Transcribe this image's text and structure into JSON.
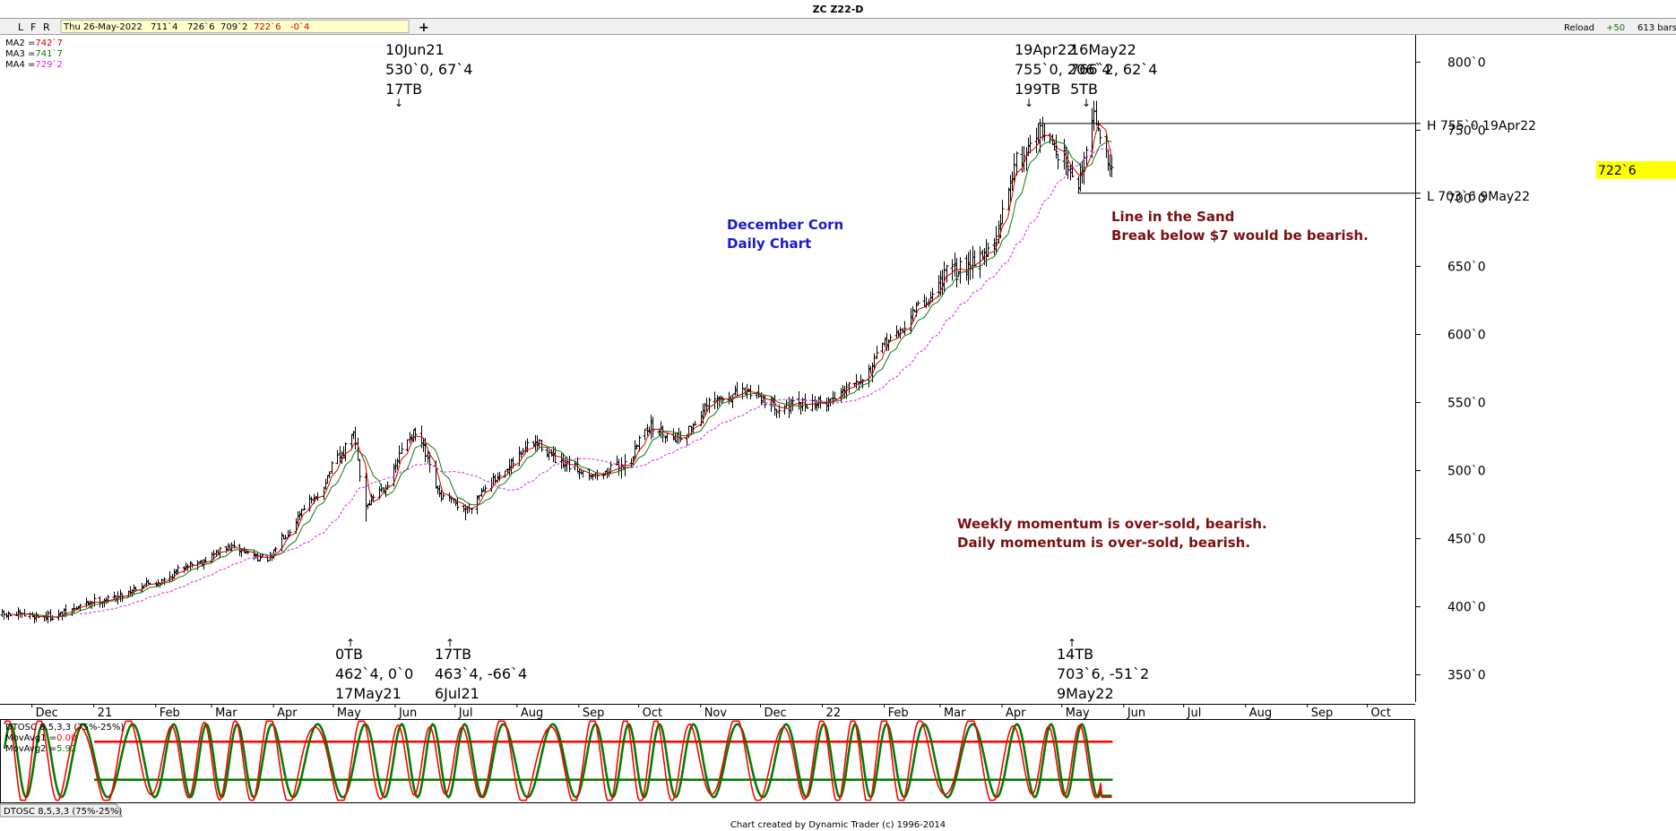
{
  "window": {
    "title": "ZC Z22-D",
    "toolbar_letters": [
      "L",
      "F",
      "R"
    ],
    "info_bar": {
      "date": "Thu 26-May-2022",
      "open": "711`4",
      "high": "726`6",
      "low": "709`2",
      "close": "722`6",
      "change": "-0`4"
    },
    "add_label": "+",
    "reload_label": "Reload",
    "reload_step": "+50",
    "bar_count": "613 bars"
  },
  "legend": {
    "ma_items": [
      {
        "name": "MA2",
        "value": "742`7",
        "color": "#d40000"
      },
      {
        "name": "MA3",
        "value": "741`7",
        "color": "#0a7a0a"
      },
      {
        "name": "MA4",
        "value": "729`2",
        "color": "#e020e0"
      }
    ]
  },
  "annotations": {
    "chart_label": [
      "December Corn",
      "Daily Chart"
    ],
    "line_in_sand": [
      "Line in the Sand",
      "Break below $7 would be bearish."
    ],
    "momentum_note": [
      "Weekly momentum is over-sold, bearish.",
      "Daily momentum is over-sold, bearish."
    ],
    "high_line_label": "H 755`0 19Apr22",
    "low_line_label": "L 703`6 9May22",
    "pivot_jun21": [
      "10Jun21",
      "530`0, 67`4",
      "17TB"
    ],
    "pivot_apr22": [
      "19Apr22",
      "755`0, 206`4",
      "199TB"
    ],
    "pivot_may22_high": [
      "16May22",
      "",
      "5TB"
    ],
    "pivot_may22_high_overlap": "766`2, 62`4",
    "pivot_may21": [
      "0TB",
      "462`4, 0`0",
      "17May21"
    ],
    "pivot_jul21": [
      "17TB",
      "463`4, -66`4",
      "6Jul21"
    ],
    "pivot_may22_low": [
      "14TB",
      "703`6, -51`2",
      "9May22"
    ],
    "arrow_up": "↑",
    "arrow_down": "↓"
  },
  "oscillator": {
    "title": "DTOSC 8,5,3,3 (75%-25%)",
    "movavg1_label": "MovAvg1 =",
    "movavg1_value": "0.00",
    "movavg2_label": "MovAvg2 =",
    "movavg2_value": "5.92",
    "tab_label": "DTOSC 8,5,3,3 (75%-25%)",
    "upper_level": 75,
    "lower_level": 25,
    "colors": {
      "fast": "#ff0000",
      "slow": "#007a00"
    }
  },
  "footer": {
    "credit": "Chart created by Dynamic Trader  (c) 1996-2014"
  },
  "colors": {
    "annotation_blue": "#1a1acc",
    "annotation_red": "#7a1010",
    "price_highlight": "#ffff00"
  },
  "chart_data": {
    "type": "bar",
    "symbol": "ZC Z22-D",
    "ylim": [
      330,
      820
    ],
    "y_ticks": [
      {
        "value": 350,
        "label": "350`0"
      },
      {
        "value": 400,
        "label": "400`0"
      },
      {
        "value": 450,
        "label": "450`0"
      },
      {
        "value": 500,
        "label": "500`0"
      },
      {
        "value": 550,
        "label": "550`0"
      },
      {
        "value": 600,
        "label": "600`0"
      },
      {
        "value": 650,
        "label": "650`0"
      },
      {
        "value": 700,
        "label": "700`0"
      },
      {
        "value": 750,
        "label": "750`0"
      },
      {
        "value": 800,
        "label": "800`0"
      }
    ],
    "x_ticks": [
      {
        "date": "2020-12-01",
        "label": "Dec"
      },
      {
        "date": "2021-01-01",
        "label": "21"
      },
      {
        "date": "2021-02-01",
        "label": "Feb"
      },
      {
        "date": "2021-03-01",
        "label": "Mar"
      },
      {
        "date": "2021-04-01",
        "label": "Apr"
      },
      {
        "date": "2021-05-01",
        "label": "May"
      },
      {
        "date": "2021-06-01",
        "label": "Jun"
      },
      {
        "date": "2021-07-01",
        "label": "Jul"
      },
      {
        "date": "2021-08-01",
        "label": "Aug"
      },
      {
        "date": "2021-09-01",
        "label": "Sep"
      },
      {
        "date": "2021-10-01",
        "label": "Oct"
      },
      {
        "date": "2021-11-01",
        "label": "Nov"
      },
      {
        "date": "2021-12-01",
        "label": "Dec"
      },
      {
        "date": "2022-01-01",
        "label": "22"
      },
      {
        "date": "2022-02-01",
        "label": "Feb"
      },
      {
        "date": "2022-03-01",
        "label": "Mar"
      },
      {
        "date": "2022-04-01",
        "label": "Apr"
      },
      {
        "date": "2022-05-01",
        "label": "May"
      },
      {
        "date": "2022-06-01",
        "label": "Jun"
      },
      {
        "date": "2022-07-01",
        "label": "Jul"
      },
      {
        "date": "2022-08-01",
        "label": "Aug"
      },
      {
        "date": "2022-09-01",
        "label": "Sep"
      },
      {
        "date": "2022-10-01",
        "label": "Oct"
      }
    ],
    "x_range": [
      "2020-11-15",
      "2022-10-25"
    ],
    "last_price": {
      "value": 722.75,
      "label": "722`6"
    },
    "high_line": {
      "value": 755,
      "start": "2022-04-19",
      "end": "2022-10-25"
    },
    "low_line": {
      "value": 703.75,
      "start": "2022-05-09",
      "end": "2022-10-25"
    },
    "price_path": [
      {
        "date": "2020-11-15",
        "close": 394
      },
      {
        "date": "2020-12-10",
        "close": 393
      },
      {
        "date": "2021-01-05",
        "close": 405
      },
      {
        "date": "2021-02-01",
        "close": 418
      },
      {
        "date": "2021-02-20",
        "close": 432
      },
      {
        "date": "2021-03-10",
        "close": 443
      },
      {
        "date": "2021-03-30",
        "close": 435
      },
      {
        "date": "2021-04-05",
        "close": 452
      },
      {
        "date": "2021-04-20",
        "close": 478
      },
      {
        "date": "2021-05-05",
        "close": 510
      },
      {
        "date": "2021-05-10",
        "close": 528
      },
      {
        "date": "2021-05-17",
        "close": 475
      },
      {
        "date": "2021-05-25",
        "close": 487
      },
      {
        "date": "2021-06-10",
        "close": 527
      },
      {
        "date": "2021-06-25",
        "close": 480
      },
      {
        "date": "2021-07-06",
        "close": 472
      },
      {
        "date": "2021-07-20",
        "close": 493
      },
      {
        "date": "2021-08-10",
        "close": 520
      },
      {
        "date": "2021-08-25",
        "close": 503
      },
      {
        "date": "2021-09-10",
        "close": 497
      },
      {
        "date": "2021-09-25",
        "close": 505
      },
      {
        "date": "2021-10-05",
        "close": 532
      },
      {
        "date": "2021-10-20",
        "close": 525
      },
      {
        "date": "2021-11-10",
        "close": 552
      },
      {
        "date": "2021-11-25",
        "close": 558
      },
      {
        "date": "2021-12-10",
        "close": 547
      },
      {
        "date": "2022-01-01",
        "close": 550
      },
      {
        "date": "2022-01-20",
        "close": 568
      },
      {
        "date": "2022-02-05",
        "close": 598
      },
      {
        "date": "2022-02-20",
        "close": 622
      },
      {
        "date": "2022-03-05",
        "close": 645
      },
      {
        "date": "2022-03-25",
        "close": 660
      },
      {
        "date": "2022-04-10",
        "close": 730
      },
      {
        "date": "2022-04-19",
        "close": 748
      },
      {
        "date": "2022-05-02",
        "close": 730
      },
      {
        "date": "2022-05-09",
        "close": 712
      },
      {
        "date": "2022-05-16",
        "close": 760
      },
      {
        "date": "2022-05-26",
        "close": 722.75
      }
    ],
    "series": [
      {
        "name": "MA2",
        "color": "#d40000"
      },
      {
        "name": "MA3",
        "color": "#0a7a0a"
      },
      {
        "name": "MA4",
        "color": "#e020e0"
      }
    ],
    "pivots": [
      {
        "date": "2021-06-10",
        "price": 530,
        "type": "high"
      },
      {
        "date": "2022-04-19",
        "price": 755,
        "type": "high"
      },
      {
        "date": "2022-05-16",
        "price": 766.25,
        "type": "high"
      },
      {
        "date": "2021-05-17",
        "price": 462.5,
        "type": "low"
      },
      {
        "date": "2021-07-06",
        "price": 463.5,
        "type": "low"
      },
      {
        "date": "2022-05-09",
        "price": 703.75,
        "type": "low"
      }
    ]
  }
}
